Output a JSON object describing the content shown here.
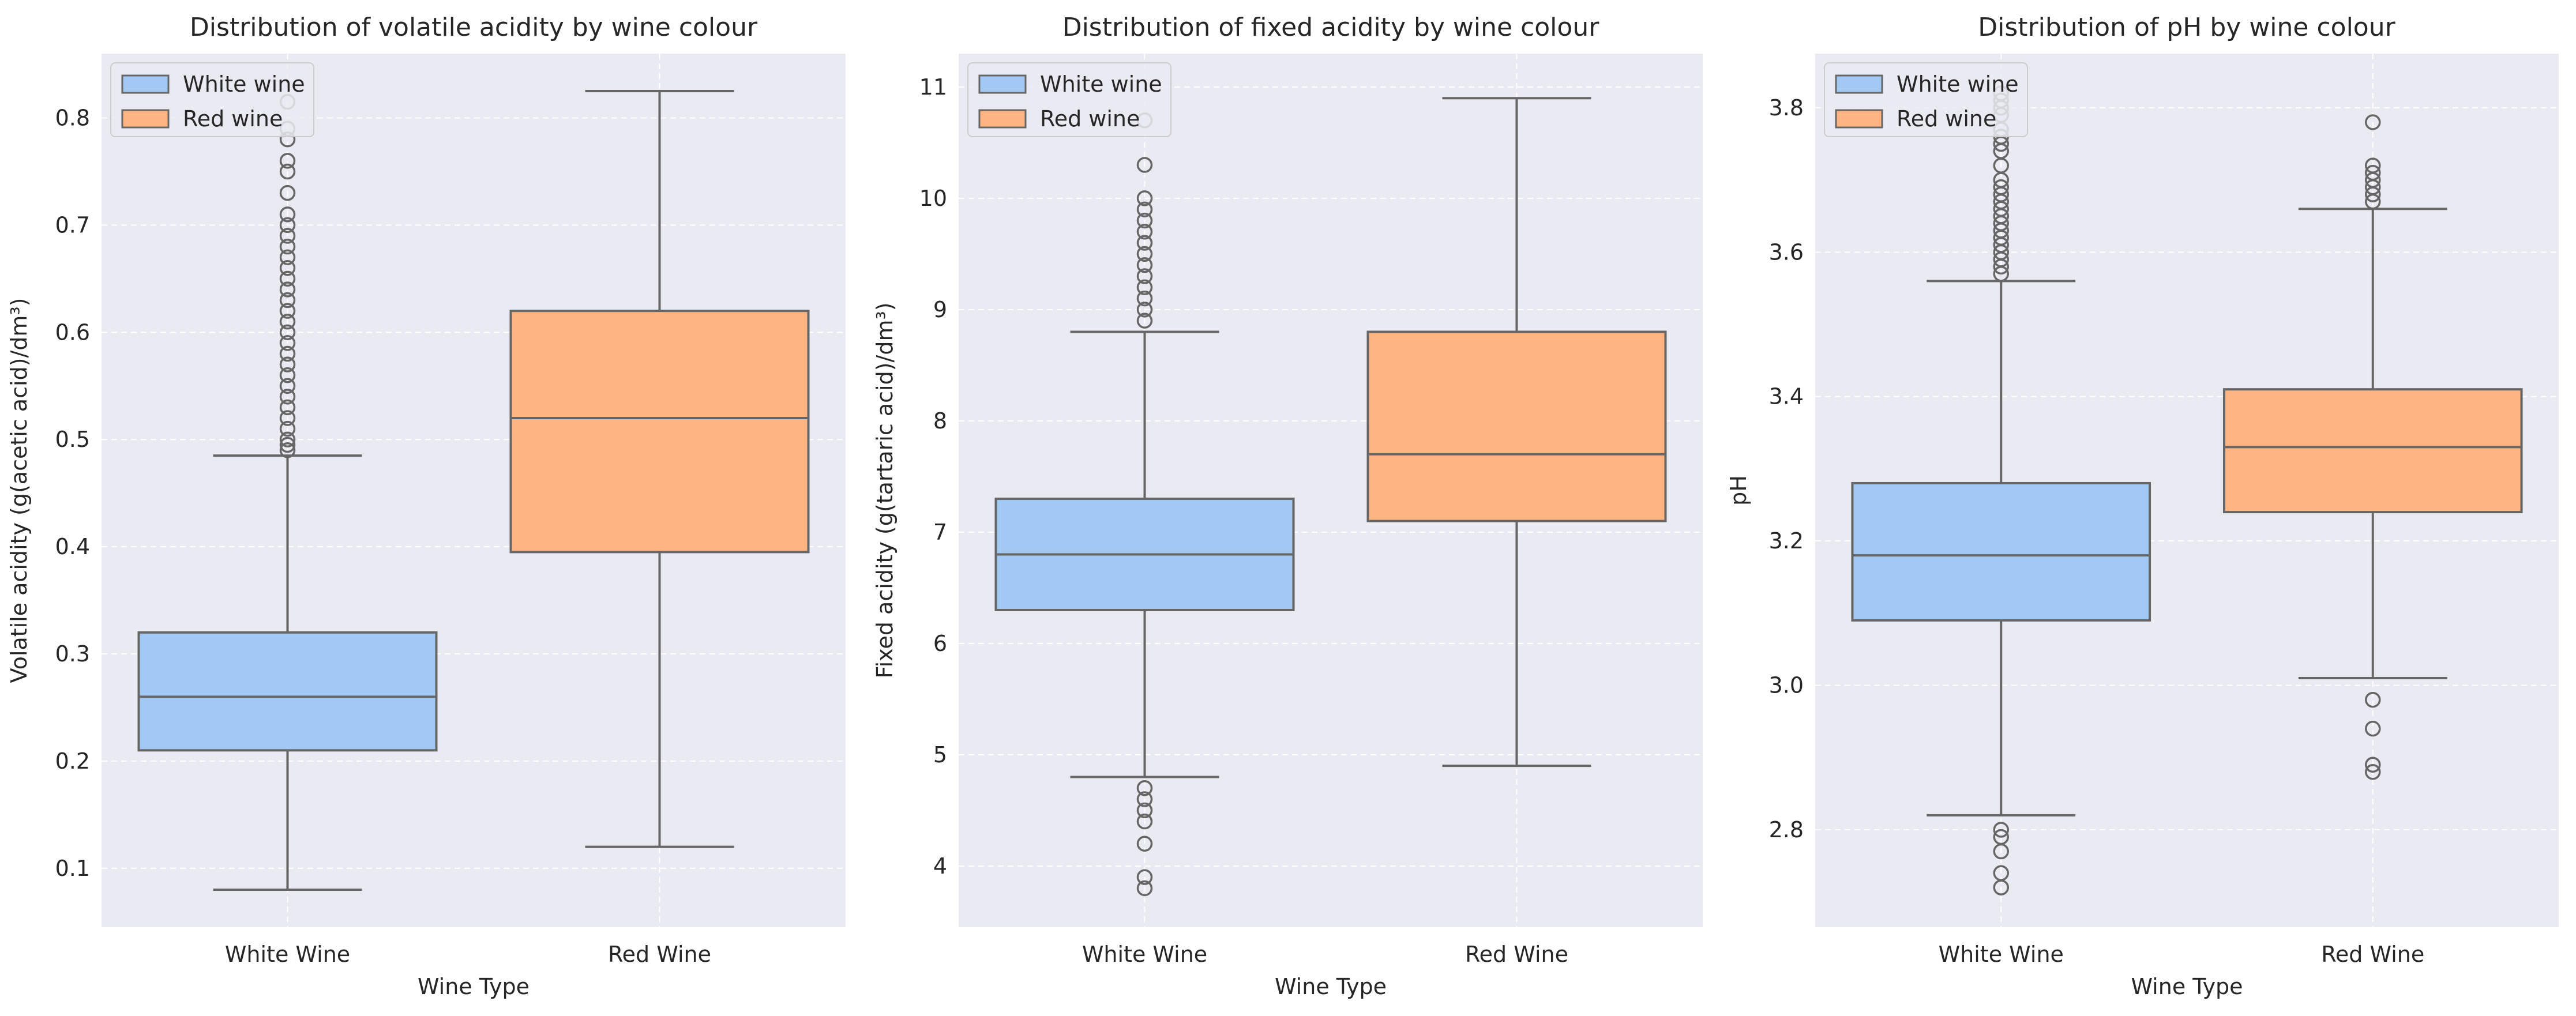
{
  "colors": {
    "panel_bg": "#eaeaf2",
    "grid": "#ffffff",
    "white_wine": "#a1c9f4",
    "red_wine": "#ffb482",
    "box_edge": "#666666"
  },
  "chart_data": [
    {
      "type": "box",
      "title": "Distribution of volatile acidity by wine colour",
      "xlabel": "Wine Type",
      "ylabel": "Volatile acidity (g(acetic acid)/dm³)",
      "categories": [
        "White Wine",
        "Red Wine"
      ],
      "ylim": [
        0.045,
        0.86
      ],
      "yticks": [
        0.1,
        0.2,
        0.3,
        0.4,
        0.5,
        0.6,
        0.7,
        0.8
      ],
      "ytick_labels": [
        "0.1",
        "0.2",
        "0.3",
        "0.4",
        "0.5",
        "0.6",
        "0.7",
        "0.8"
      ],
      "grid": true,
      "legend": {
        "position": "top-left",
        "entries": [
          "White wine",
          "Red wine"
        ]
      },
      "boxes": [
        {
          "category": "White Wine",
          "whisker_low": 0.08,
          "q1": 0.21,
          "median": 0.26,
          "q3": 0.32,
          "whisker_high": 0.485,
          "outliers": [
            0.49,
            0.495,
            0.5,
            0.51,
            0.52,
            0.53,
            0.54,
            0.55,
            0.56,
            0.57,
            0.58,
            0.59,
            0.6,
            0.61,
            0.62,
            0.63,
            0.64,
            0.65,
            0.66,
            0.67,
            0.68,
            0.69,
            0.7,
            0.71,
            0.73,
            0.75,
            0.76,
            0.78,
            0.79,
            0.815
          ]
        },
        {
          "category": "Red Wine",
          "whisker_low": 0.12,
          "q1": 0.395,
          "median": 0.52,
          "q3": 0.62,
          "whisker_high": 0.825,
          "outliers": []
        }
      ]
    },
    {
      "type": "box",
      "title": "Distribution of fixed acidity by wine colour",
      "xlabel": "Wine Type",
      "ylabel": "Fixed acidity (g(tartaric acid)/dm³)",
      "categories": [
        "White Wine",
        "Red Wine"
      ],
      "ylim": [
        3.45,
        11.3
      ],
      "yticks": [
        4,
        5,
        6,
        7,
        8,
        9,
        10,
        11
      ],
      "ytick_labels": [
        "4",
        "5",
        "6",
        "7",
        "8",
        "9",
        "10",
        "11"
      ],
      "grid": true,
      "legend": {
        "position": "top-left",
        "entries": [
          "White wine",
          "Red wine"
        ]
      },
      "boxes": [
        {
          "category": "White Wine",
          "whisker_low": 4.8,
          "q1": 6.3,
          "median": 6.8,
          "q3": 7.3,
          "whisker_high": 8.8,
          "outliers": [
            3.8,
            3.9,
            4.2,
            4.4,
            4.5,
            4.6,
            4.7,
            8.9,
            9.0,
            9.1,
            9.2,
            9.3,
            9.4,
            9.5,
            9.6,
            9.7,
            9.8,
            9.9,
            10.0,
            10.3,
            10.7
          ]
        },
        {
          "category": "Red Wine",
          "whisker_low": 4.9,
          "q1": 7.1,
          "median": 7.7,
          "q3": 8.8,
          "whisker_high": 10.9,
          "outliers": []
        }
      ]
    },
    {
      "type": "box",
      "title": "Distribution of pH by wine colour",
      "xlabel": "Wine Type",
      "ylabel": "pH",
      "categories": [
        "White Wine",
        "Red Wine"
      ],
      "ylim": [
        2.665,
        3.875
      ],
      "yticks": [
        2.8,
        3.0,
        3.2,
        3.4,
        3.6,
        3.8
      ],
      "ytick_labels": [
        "2.8",
        "3.0",
        "3.2",
        "3.4",
        "3.6",
        "3.8"
      ],
      "grid": true,
      "legend": {
        "position": "top-left",
        "entries": [
          "White wine",
          "Red wine"
        ]
      },
      "boxes": [
        {
          "category": "White Wine",
          "whisker_low": 2.82,
          "q1": 3.09,
          "median": 3.18,
          "q3": 3.28,
          "whisker_high": 3.56,
          "outliers": [
            2.72,
            2.74,
            2.77,
            2.79,
            2.8,
            3.57,
            3.58,
            3.59,
            3.6,
            3.61,
            3.62,
            3.63,
            3.64,
            3.65,
            3.66,
            3.67,
            3.68,
            3.69,
            3.7,
            3.72,
            3.74,
            3.75,
            3.76,
            3.77,
            3.79,
            3.8,
            3.81,
            3.82
          ]
        },
        {
          "category": "Red Wine",
          "whisker_low": 3.01,
          "q1": 3.24,
          "median": 3.33,
          "q3": 3.41,
          "whisker_high": 3.66,
          "outliers": [
            2.88,
            2.89,
            2.94,
            2.98,
            3.67,
            3.68,
            3.69,
            3.7,
            3.71,
            3.72,
            3.78
          ]
        }
      ]
    }
  ]
}
